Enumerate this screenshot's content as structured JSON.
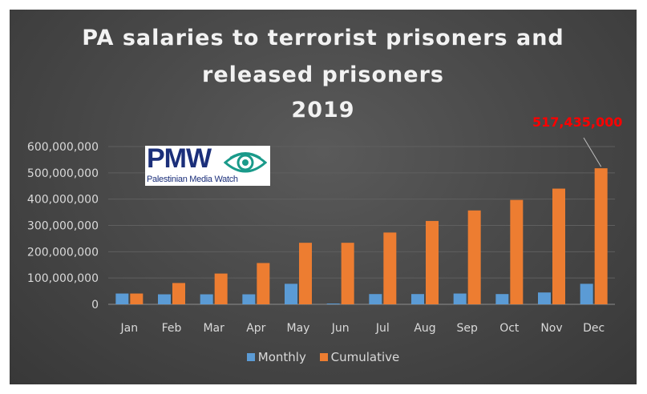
{
  "chart_data": {
    "type": "bar",
    "title_lines": [
      "PA salaries to terrorist prisoners and",
      "released prisoners",
      "2019"
    ],
    "categories": [
      "Jan",
      "Feb",
      "Mar",
      "Apr",
      "May",
      "Jun",
      "Jul",
      "Aug",
      "Sep",
      "Oct",
      "Nov",
      "Dec"
    ],
    "series": [
      {
        "name": "Monthly",
        "color": "#5b9bd5",
        "values": [
          41000000,
          38000000,
          38000000,
          38000000,
          78000000,
          3000000,
          39000000,
          39000000,
          41000000,
          39000000,
          45000000,
          78000000
        ]
      },
      {
        "name": "Cumulative",
        "color": "#ed7d31",
        "values": [
          41000000,
          81000000,
          117000000,
          157000000,
          234000000,
          234000000,
          273000000,
          317000000,
          357000000,
          397000000,
          440000000,
          517435000
        ]
      }
    ],
    "yticks": [
      "0",
      "100,000,000",
      "200,000,000",
      "300,000,000",
      "400,000,000",
      "500,000,000",
      "600,000,000"
    ],
    "ylim": [
      0,
      600000000
    ],
    "xlabel": "",
    "ylabel": "",
    "legend": "bottom",
    "grid": true,
    "annotation": {
      "text": "517,435,000",
      "category": "Dec",
      "series": "Cumulative",
      "color": "#ff0000"
    }
  },
  "logo": {
    "name": "PMW",
    "subtitle": "Palestinian Media Watch"
  }
}
